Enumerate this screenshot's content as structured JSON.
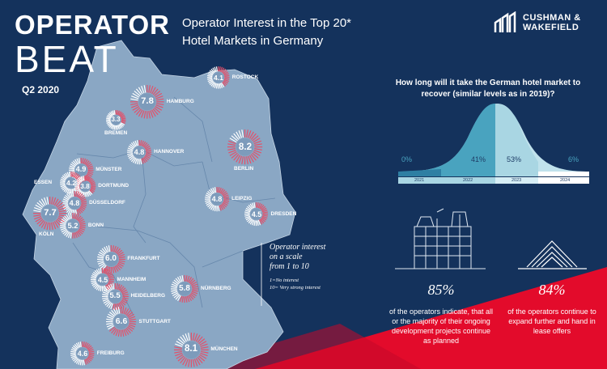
{
  "brand": {
    "line1": "OPERATOR",
    "line2": "BEAT",
    "quarter": "Q2 2020"
  },
  "headline": {
    "line1": "Operator Interest in the Top 20*",
    "line2": "Hotel Markets in Germany"
  },
  "logo": {
    "line1": "CUSHMAN &",
    "line2": "WAKEFIELD"
  },
  "recovery": {
    "question": "How long will it take the German hotel market to recover (similar levels as in 2019)?",
    "segments": [
      {
        "pct": "0%",
        "year": "2021"
      },
      {
        "pct": "41%",
        "year": "2022"
      },
      {
        "pct": "53%",
        "year": "2023"
      },
      {
        "pct": "6%",
        "year": "2024"
      }
    ]
  },
  "stats": [
    {
      "value": "85%",
      "text": "of the operators indicate, that all or the majority of their ongoing development projects continue as planned"
    },
    {
      "value": "84%",
      "text": "of the operators continue to expand further and hand in lease offers"
    }
  ],
  "legend": {
    "title1": "Operator interest",
    "title2": "on a scale",
    "title3": "from 1 to 10",
    "s1": "1=No interest",
    "s2": "10= Very strong interest"
  },
  "cities": [
    {
      "name": "ROSTOCK",
      "score": "4.1"
    },
    {
      "name": "HAMBURG",
      "score": "7.8"
    },
    {
      "name": "BREMEN",
      "score": "3.3"
    },
    {
      "name": "HANNOVER",
      "score": "4.8"
    },
    {
      "name": "BERLIN",
      "score": "8.2"
    },
    {
      "name": "MÜNSTER",
      "score": "4.9"
    },
    {
      "name": "ESSEN",
      "score": "4.2"
    },
    {
      "name": "DORTMUND",
      "score": "3.8"
    },
    {
      "name": "DÜSSELDORF",
      "score": "4.8"
    },
    {
      "name": "LEIPZIG",
      "score": "4.8"
    },
    {
      "name": "DRESDEN",
      "score": "4.5"
    },
    {
      "name": "KÖLN",
      "score": "7.7"
    },
    {
      "name": "BONN",
      "score": "5.2"
    },
    {
      "name": "FRANKFURT",
      "score": "6.0"
    },
    {
      "name": "MANNHEIM",
      "score": "4.5"
    },
    {
      "name": "HEIDELBERG",
      "score": "5.5"
    },
    {
      "name": "NÜRNBERG",
      "score": "5.8"
    },
    {
      "name": "STUTTGART",
      "score": "6.6"
    },
    {
      "name": "FREIBURG",
      "score": "4.6"
    },
    {
      "name": "MÜNCHEN",
      "score": "8.1"
    }
  ],
  "colors": {
    "navy": "#14325c",
    "map": "#8aa7c4",
    "red": "#e30b2b",
    "teal": "#49a3bf",
    "light": "#a9d6e3"
  }
}
